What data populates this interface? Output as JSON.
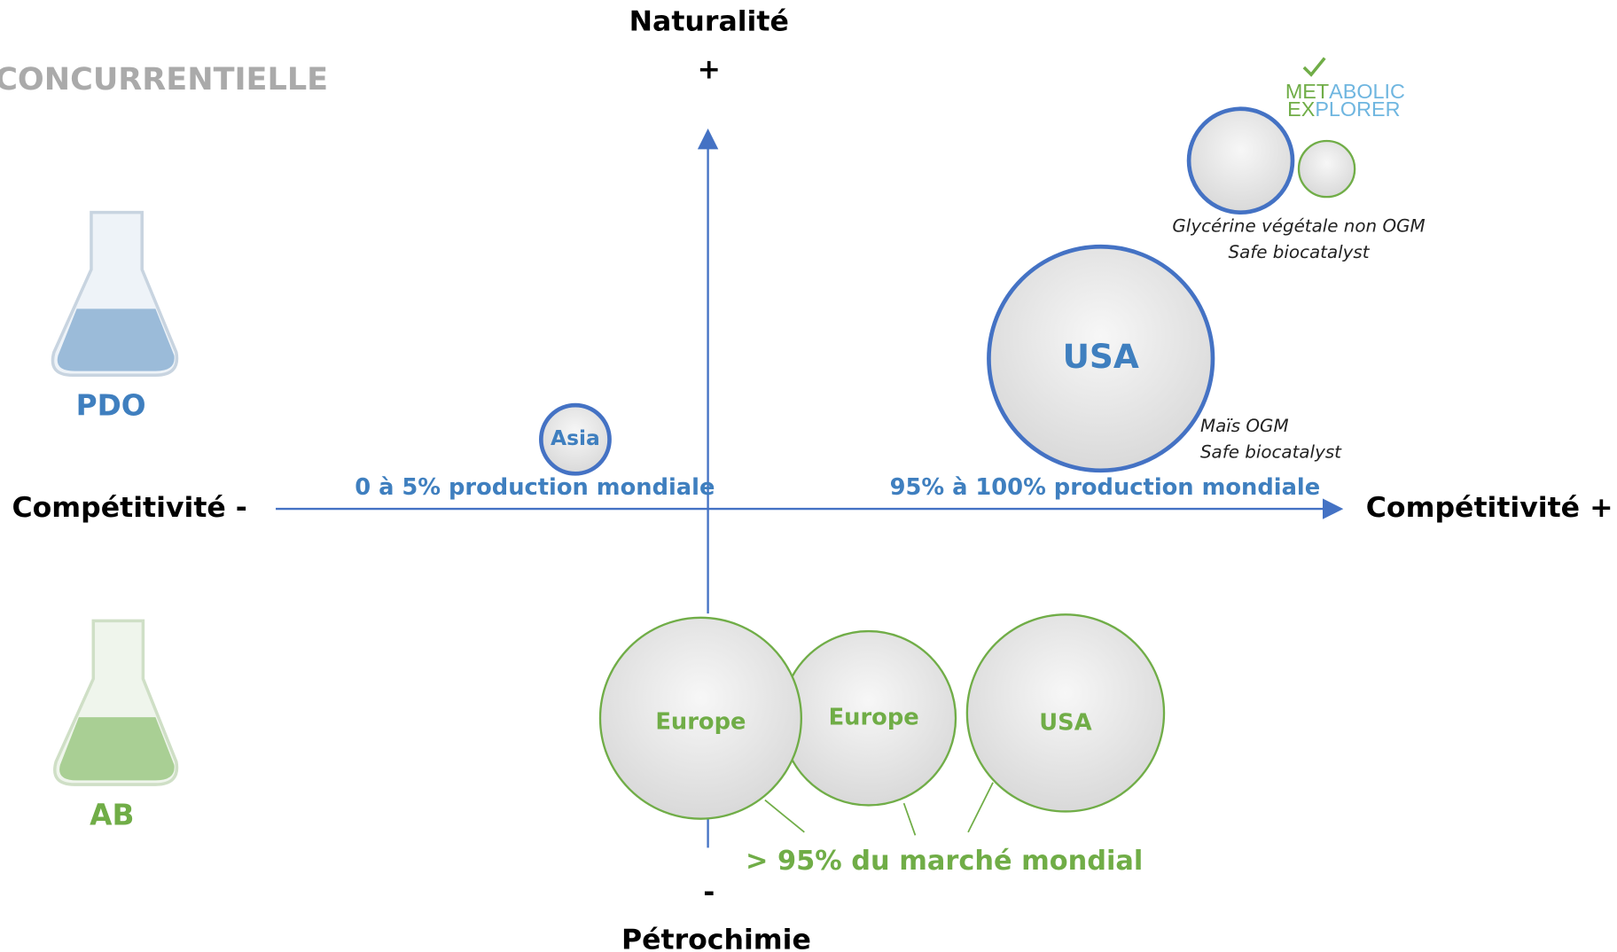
{
  "header": {
    "title": "CONCURRENTIELLE"
  },
  "axes": {
    "top": "Naturalité",
    "top_sign": "+",
    "bottom_sign": "-",
    "bottom": "Pétrochimie",
    "left": "Compétitivité -",
    "right": "Compétitivité +"
  },
  "legend": [
    {
      "label": "PDO"
    },
    {
      "label": "AB"
    }
  ],
  "logo": {
    "line1a": "MET",
    "line1b": "ABOLIC",
    "line2a": "EX",
    "line2b": "PLORER"
  },
  "bubbles": {
    "asia": "Asia",
    "usa_top": "USA",
    "europe_1": "Europe",
    "europe_2": "Europe",
    "usa_bottom": "USA"
  },
  "notes": {
    "asia_share": "0 à 5% production mondiale",
    "usa_share": "95% à 100% production mondiale",
    "usa_line1": "Maïs OGM",
    "usa_line2": "Safe biocatalyst",
    "metabolic_line1": "Glycérine  végétale non OGM",
    "metabolic_line2": "Safe biocatalyst",
    "petro_share": "> 95% du marché mondial"
  }
}
